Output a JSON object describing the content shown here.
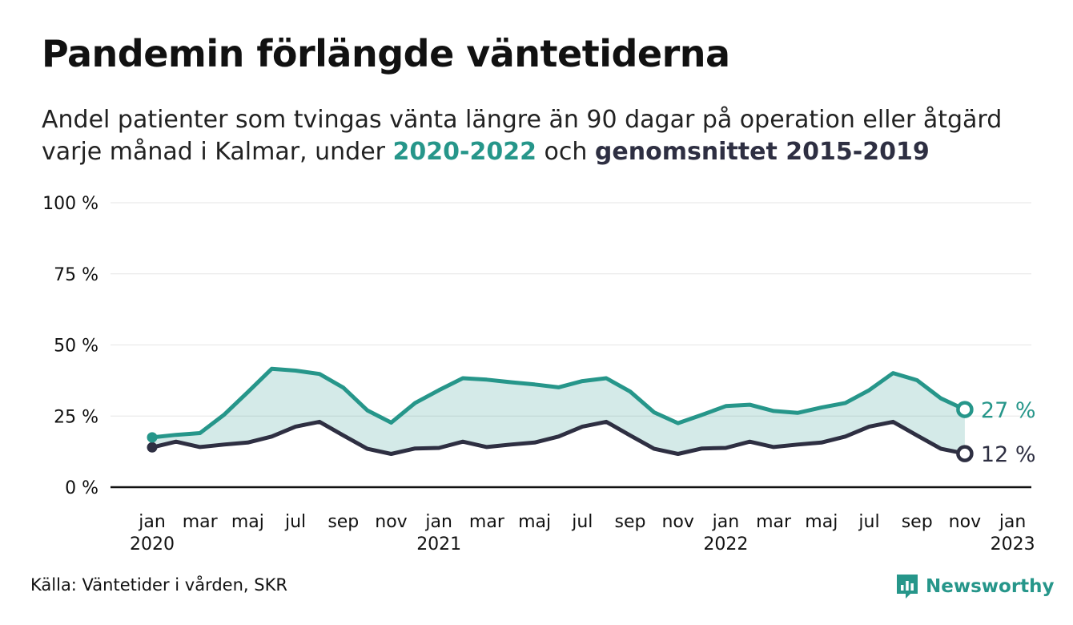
{
  "header": {
    "title": "Pandemin förlängde väntetiderna",
    "subtitle_line1": "Andel patienter som tvingas vänta längre än 90 dagar på operation eller åtgärd",
    "subtitle_line2_prefix": "varje månad i Kalmar, under ",
    "subtitle_highlight1": "2020-2022",
    "subtitle_mid": " och ",
    "subtitle_highlight2": "genomsnittet 2015-2019"
  },
  "footer": {
    "source": "Källa: Väntetider i vården, SKR",
    "brand": "Newsworthy"
  },
  "chart_data": {
    "type": "line",
    "y_ticks": [
      {
        "value": 0,
        "label": "0 %"
      },
      {
        "value": 25,
        "label": "25 %"
      },
      {
        "value": 50,
        "label": "50 %"
      },
      {
        "value": 75,
        "label": "75 %"
      },
      {
        "value": 100,
        "label": "100 %"
      }
    ],
    "x_ticks": [
      {
        "index": 0,
        "label": "jan",
        "year": "2020"
      },
      {
        "index": 2,
        "label": "mar"
      },
      {
        "index": 4,
        "label": "maj"
      },
      {
        "index": 6,
        "label": "jul"
      },
      {
        "index": 8,
        "label": "sep"
      },
      {
        "index": 10,
        "label": "nov"
      },
      {
        "index": 12,
        "label": "jan",
        "year": "2021"
      },
      {
        "index": 14,
        "label": "mar"
      },
      {
        "index": 16,
        "label": "maj"
      },
      {
        "index": 18,
        "label": "jul"
      },
      {
        "index": 20,
        "label": "sep"
      },
      {
        "index": 22,
        "label": "nov"
      },
      {
        "index": 24,
        "label": "jan",
        "year": "2022"
      },
      {
        "index": 26,
        "label": "mar"
      },
      {
        "index": 28,
        "label": "maj"
      },
      {
        "index": 30,
        "label": "jul"
      },
      {
        "index": 32,
        "label": "sep"
      },
      {
        "index": 34,
        "label": "nov"
      },
      {
        "index": 36,
        "label": "jan",
        "year": "2023"
      }
    ],
    "ylim": [
      0,
      100
    ],
    "grid": true,
    "series": [
      {
        "name": "2020-2022",
        "color": "#26968a",
        "end_label": "27 %",
        "values": [
          17.5,
          18.4,
          19.0,
          25.4,
          33.4,
          41.6,
          41.0,
          39.8,
          35.0,
          27.0,
          22.7,
          29.6,
          34.1,
          38.3,
          37.8,
          36.9,
          36.1,
          35.1,
          37.3,
          38.3,
          33.6,
          26.3,
          22.5,
          25.4,
          28.5,
          29.0,
          26.8,
          26.1,
          28.0,
          29.6,
          34.1,
          40.1,
          37.6,
          31.2,
          27.3
        ]
      },
      {
        "name": "genomsnittet 2015-2019",
        "color": "#2e2f42",
        "end_label": "12 %",
        "values": [
          14.0,
          16.0,
          14.1,
          15.0,
          15.7,
          17.8,
          21.3,
          23.0,
          18.2,
          13.5,
          11.7,
          13.6,
          13.8,
          16.0,
          14.1,
          15.0,
          15.7,
          17.8,
          21.3,
          23.0,
          18.2,
          13.5,
          11.7,
          13.6,
          13.8,
          16.0,
          14.1,
          15.0,
          15.7,
          17.8,
          21.3,
          23.0,
          18.2,
          13.5,
          11.8
        ]
      }
    ]
  }
}
